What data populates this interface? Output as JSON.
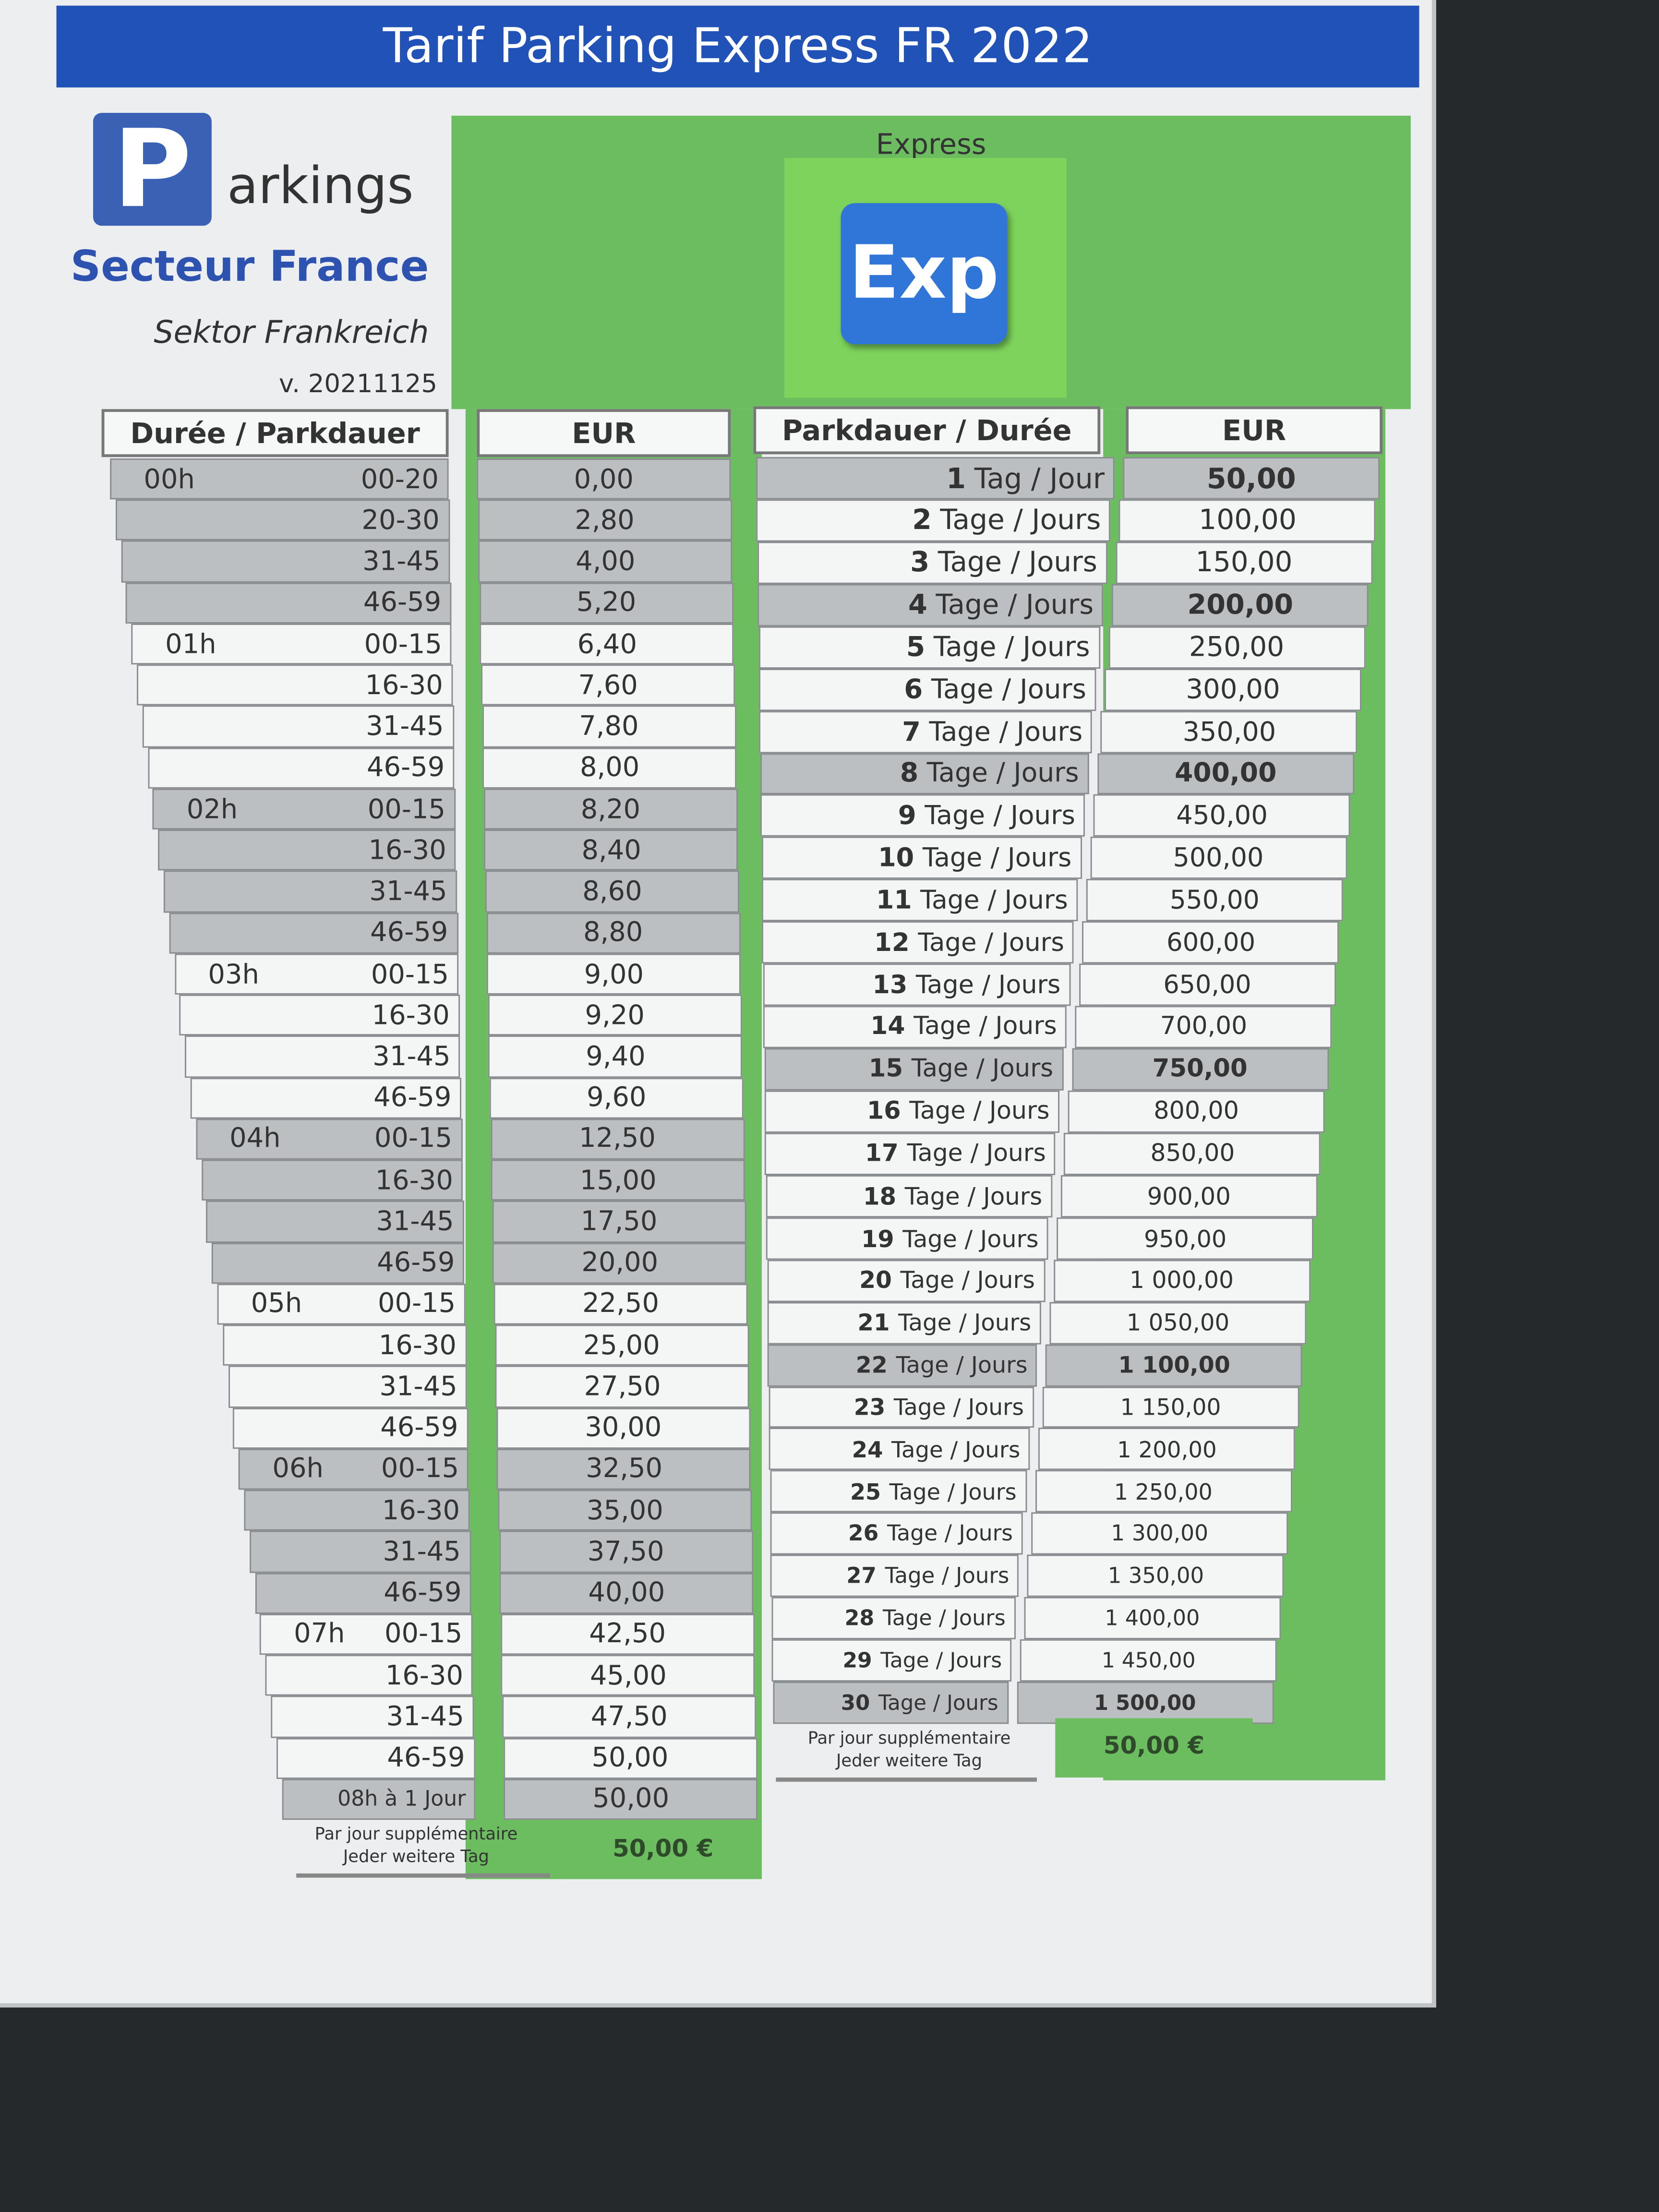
{
  "title": "Tarif Parking Express FR 2022",
  "logo": {
    "letter": "P",
    "word": "arkings",
    "secteur": "Secteur France",
    "sektor": "Sektor Frankreich",
    "version": "v. 20211125"
  },
  "express": {
    "label": "Express",
    "badge": "Exp"
  },
  "colors": {
    "title_bar": "#2152b8",
    "green": "#6bbd5f",
    "badge": "#2f76d8",
    "gray_row": "#bcbfc1"
  },
  "hourly_table": {
    "header_duration": "Durée / Parkdauer",
    "header_eur": "EUR",
    "rows": [
      {
        "hour": "00h",
        "minutes": "00-20",
        "eur": "0,00"
      },
      {
        "hour": "",
        "minutes": "20-30",
        "eur": "2,80"
      },
      {
        "hour": "",
        "minutes": "31-45",
        "eur": "4,00"
      },
      {
        "hour": "",
        "minutes": "46-59",
        "eur": "5,20"
      },
      {
        "hour": "01h",
        "minutes": "00-15",
        "eur": "6,40"
      },
      {
        "hour": "",
        "minutes": "16-30",
        "eur": "7,60"
      },
      {
        "hour": "",
        "minutes": "31-45",
        "eur": "7,80"
      },
      {
        "hour": "",
        "minutes": "46-59",
        "eur": "8,00"
      },
      {
        "hour": "02h",
        "minutes": "00-15",
        "eur": "8,20"
      },
      {
        "hour": "",
        "minutes": "16-30",
        "eur": "8,40"
      },
      {
        "hour": "",
        "minutes": "31-45",
        "eur": "8,60"
      },
      {
        "hour": "",
        "minutes": "46-59",
        "eur": "8,80"
      },
      {
        "hour": "03h",
        "minutes": "00-15",
        "eur": "9,00"
      },
      {
        "hour": "",
        "minutes": "16-30",
        "eur": "9,20"
      },
      {
        "hour": "",
        "minutes": "31-45",
        "eur": "9,40"
      },
      {
        "hour": "",
        "minutes": "46-59",
        "eur": "9,60"
      },
      {
        "hour": "04h",
        "minutes": "00-15",
        "eur": "12,50"
      },
      {
        "hour": "",
        "minutes": "16-30",
        "eur": "15,00"
      },
      {
        "hour": "",
        "minutes": "31-45",
        "eur": "17,50"
      },
      {
        "hour": "",
        "minutes": "46-59",
        "eur": "20,00"
      },
      {
        "hour": "05h",
        "minutes": "00-15",
        "eur": "22,50"
      },
      {
        "hour": "",
        "minutes": "16-30",
        "eur": "25,00"
      },
      {
        "hour": "",
        "minutes": "31-45",
        "eur": "27,50"
      },
      {
        "hour": "",
        "minutes": "46-59",
        "eur": "30,00"
      },
      {
        "hour": "06h",
        "minutes": "00-15",
        "eur": "32,50"
      },
      {
        "hour": "",
        "minutes": "16-30",
        "eur": "35,00"
      },
      {
        "hour": "",
        "minutes": "31-45",
        "eur": "37,50"
      },
      {
        "hour": "",
        "minutes": "46-59",
        "eur": "40,00"
      },
      {
        "hour": "07h",
        "minutes": "00-15",
        "eur": "42,50"
      },
      {
        "hour": "",
        "minutes": "16-30",
        "eur": "45,00"
      },
      {
        "hour": "",
        "minutes": "31-45",
        "eur": "47,50"
      },
      {
        "hour": "",
        "minutes": "46-59",
        "eur": "50,00"
      },
      {
        "hour": "",
        "minutes": "08h  à 1 Jour",
        "eur": "50,00"
      }
    ],
    "note_fr": "Par jour supplémentaire",
    "note_de": "Jeder weitere Tag",
    "extra_day": "50,00 €"
  },
  "daily_table": {
    "header_duration": "Parkdauer / Durée",
    "header_eur": "EUR",
    "rows": [
      {
        "days": "1",
        "unit": "Tag / Jour",
        "eur": "50,00",
        "highlight": true
      },
      {
        "days": "2",
        "unit": "Tage / Jours",
        "eur": "100,00"
      },
      {
        "days": "3",
        "unit": "Tage / Jours",
        "eur": "150,00"
      },
      {
        "days": "4",
        "unit": "Tage / Jours",
        "eur": "200,00",
        "highlight": true
      },
      {
        "days": "5",
        "unit": "Tage / Jours",
        "eur": "250,00"
      },
      {
        "days": "6",
        "unit": "Tage / Jours",
        "eur": "300,00"
      },
      {
        "days": "7",
        "unit": "Tage / Jours",
        "eur": "350,00"
      },
      {
        "days": "8",
        "unit": "Tage / Jours",
        "eur": "400,00",
        "highlight": true
      },
      {
        "days": "9",
        "unit": "Tage / Jours",
        "eur": "450,00"
      },
      {
        "days": "10",
        "unit": "Tage / Jours",
        "eur": "500,00"
      },
      {
        "days": "11",
        "unit": "Tage / Jours",
        "eur": "550,00"
      },
      {
        "days": "12",
        "unit": "Tage / Jours",
        "eur": "600,00"
      },
      {
        "days": "13",
        "unit": "Tage / Jours",
        "eur": "650,00"
      },
      {
        "days": "14",
        "unit": "Tage / Jours",
        "eur": "700,00"
      },
      {
        "days": "15",
        "unit": "Tage / Jours",
        "eur": "750,00",
        "highlight": true
      },
      {
        "days": "16",
        "unit": "Tage / Jours",
        "eur": "800,00"
      },
      {
        "days": "17",
        "unit": "Tage / Jours",
        "eur": "850,00"
      },
      {
        "days": "18",
        "unit": "Tage / Jours",
        "eur": "900,00"
      },
      {
        "days": "19",
        "unit": "Tage / Jours",
        "eur": "950,00"
      },
      {
        "days": "20",
        "unit": "Tage / Jours",
        "eur": "1 000,00"
      },
      {
        "days": "21",
        "unit": "Tage / Jours",
        "eur": "1 050,00"
      },
      {
        "days": "22",
        "unit": "Tage / Jours",
        "eur": "1 100,00",
        "highlight": true
      },
      {
        "days": "23",
        "unit": "Tage / Jours",
        "eur": "1 150,00"
      },
      {
        "days": "24",
        "unit": "Tage / Jours",
        "eur": "1 200,00"
      },
      {
        "days": "25",
        "unit": "Tage / Jours",
        "eur": "1 250,00"
      },
      {
        "days": "26",
        "unit": "Tage / Jours",
        "eur": "1 300,00"
      },
      {
        "days": "27",
        "unit": "Tage / Jours",
        "eur": "1 350,00"
      },
      {
        "days": "28",
        "unit": "Tage / Jours",
        "eur": "1 400,00"
      },
      {
        "days": "29",
        "unit": "Tage / Jours",
        "eur": "1 450,00"
      },
      {
        "days": "30",
        "unit": "Tage / Jours",
        "eur": "1 500,00",
        "highlight": true
      }
    ],
    "note_fr": "Par jour supplémentaire",
    "note_de": "Jeder weitere Tag",
    "extra_day": "50,00 €"
  }
}
